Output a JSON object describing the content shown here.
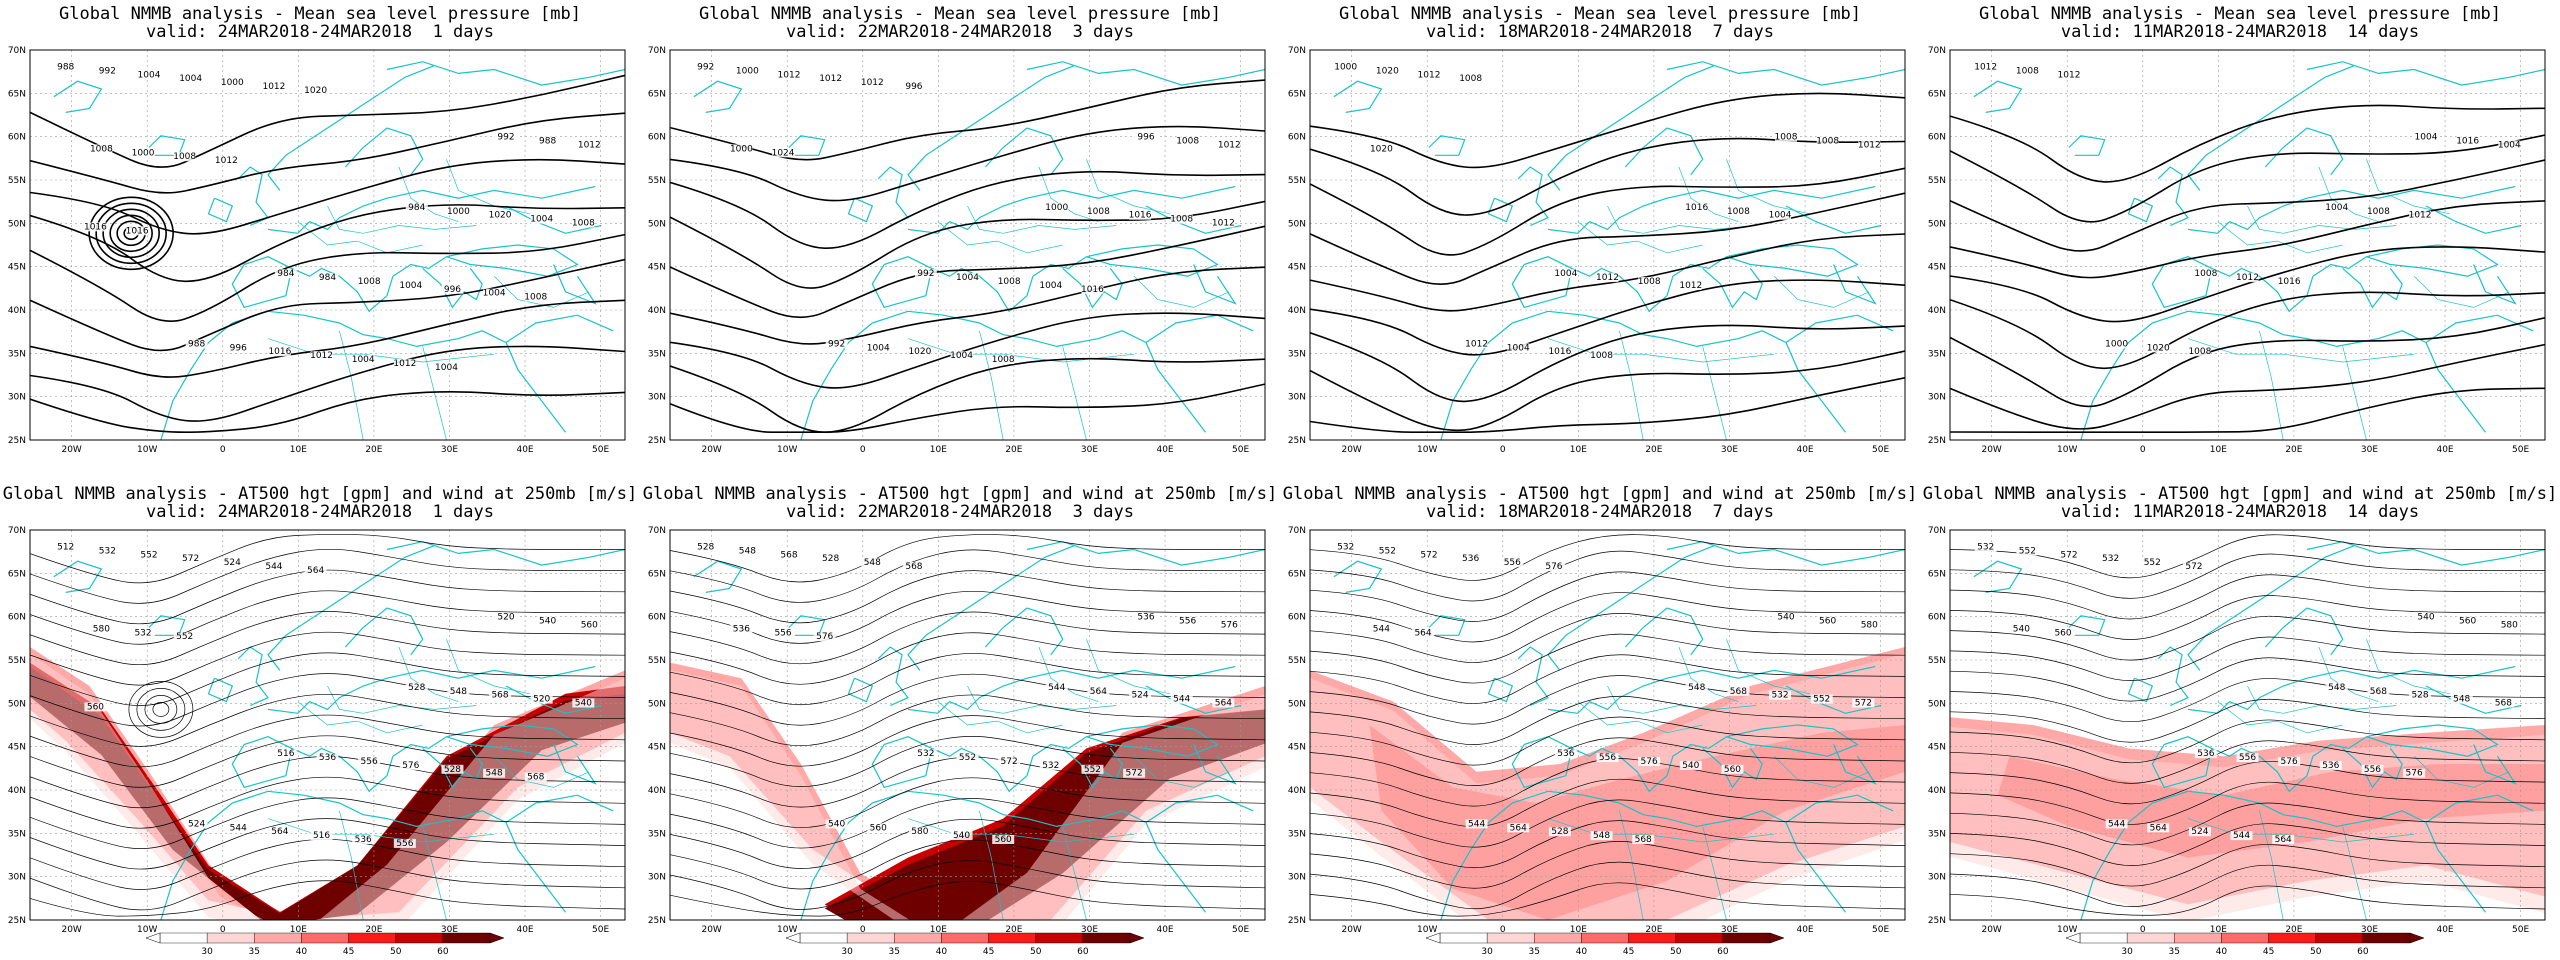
{
  "grid": {
    "lat_ticks": [
      "70N",
      "65N",
      "60N",
      "55N",
      "50N",
      "45N",
      "40N",
      "35N",
      "30N",
      "25N"
    ],
    "lon_ticks": [
      "20W",
      "10W",
      "0",
      "10E",
      "20E",
      "30E",
      "40E",
      "50E"
    ]
  },
  "colors": {
    "coast": "#17c3cc",
    "contour": "#000000",
    "wind_scale": [
      "#ffffff",
      "#ffd6d6",
      "#ffa8a8",
      "#ff6b6b",
      "#ff1a1a",
      "#c80000",
      "#6e0000"
    ]
  },
  "colorbar": {
    "labels": [
      "30",
      "35",
      "40",
      "45",
      "50",
      "60"
    ]
  },
  "panels": [
    {
      "id": "mslp-1d",
      "row": "top",
      "title": "Global NMMB analysis - Mean sea level pressure [mb]",
      "subtitle": "valid: 24MAR2018-24MAR2018  1 days",
      "labels": [
        "988",
        "984",
        "992",
        "988",
        "984",
        "992",
        "984",
        "988",
        "996",
        "1000",
        "1004",
        "1008",
        "1012",
        "1016",
        "1020",
        "1004",
        "1004",
        "1008",
        "1012",
        "1004",
        "1000",
        "996",
        "1000",
        "1004",
        "1008",
        "1012",
        "1004",
        "1008",
        "1012",
        "1016",
        "1020",
        "1008",
        "1012",
        "1004",
        "1016"
      ]
    },
    {
      "id": "mslp-3d",
      "row": "top",
      "title": "Global NMMB analysis - Mean sea level pressure [mb]",
      "subtitle": "valid: 22MAR2018-24MAR2018  3 days",
      "labels": [
        "992",
        "992",
        "996",
        "992",
        "1000",
        "1000",
        "1004",
        "1008",
        "1004",
        "1008",
        "1012",
        "1008",
        "1012",
        "1020",
        "1016",
        "1012",
        "1004",
        "1000",
        "1004",
        "1008",
        "1012",
        "1016",
        "1024",
        "1008",
        "1012",
        "996"
      ]
    },
    {
      "id": "mslp-7d",
      "row": "top",
      "title": "Global NMMB analysis - Mean sea level pressure [mb]",
      "subtitle": "valid: 18MAR2018-24MAR2018  7 days",
      "labels": [
        "1000",
        "1004",
        "1008",
        "1012",
        "1016",
        "1020",
        "1012",
        "1008",
        "1004",
        "1008",
        "1012",
        "1008",
        "1012",
        "1016",
        "1004",
        "1008",
        "1012",
        "1020",
        "1008"
      ]
    },
    {
      "id": "mslp-14d",
      "row": "top",
      "title": "Global NMMB analysis - Mean sea level pressure [mb]",
      "subtitle": "valid: 11MAR2018-24MAR2018  14 days",
      "labels": [
        "1012",
        "1008",
        "1004",
        "1000",
        "1004",
        "1008",
        "1012",
        "1016",
        "1020",
        "1008",
        "1012",
        "1016",
        "1004",
        "1008",
        "1012"
      ]
    },
    {
      "id": "z500-1d",
      "row": "bottom",
      "title": "Global NMMB analysis - AT500 hgt [gpm] and wind at 250mb [m/s]",
      "subtitle": "valid: 24MAR2018-24MAR2018  1 days",
      "labels": [
        "512",
        "516",
        "520",
        "524",
        "528",
        "532",
        "536",
        "540",
        "544",
        "548",
        "552",
        "556",
        "560",
        "564",
        "568",
        "572",
        "576",
        "580",
        "516",
        "520",
        "524",
        "528",
        "532",
        "536",
        "540",
        "544",
        "548",
        "552",
        "556",
        "560",
        "564",
        "568"
      ]
    },
    {
      "id": "z500-3d",
      "row": "bottom",
      "title": "Global NMMB analysis - AT500 hgt [gpm] and wind at 250mb [m/s]",
      "subtitle": "valid: 22MAR2018-24MAR2018  3 days",
      "labels": [
        "528",
        "532",
        "536",
        "540",
        "544",
        "548",
        "552",
        "556",
        "560",
        "564",
        "568",
        "572",
        "576",
        "580",
        "524",
        "528",
        "532",
        "536",
        "540",
        "544",
        "548",
        "552",
        "556",
        "560",
        "564",
        "568",
        "572",
        "576"
      ]
    },
    {
      "id": "z500-7d",
      "row": "bottom",
      "title": "Global NMMB analysis - AT500 hgt [gpm] and wind at 250mb [m/s]",
      "subtitle": "valid: 18MAR2018-24MAR2018  7 days",
      "labels": [
        "532",
        "536",
        "540",
        "544",
        "548",
        "552",
        "556",
        "560",
        "564",
        "568",
        "572",
        "576",
        "580",
        "528",
        "532",
        "536",
        "540",
        "544",
        "548",
        "552",
        "556",
        "560",
        "564",
        "568",
        "572",
        "576"
      ]
    },
    {
      "id": "z500-14d",
      "row": "bottom",
      "title": "Global NMMB analysis - AT500 hgt [gpm] and wind at 250mb [m/s]",
      "subtitle": "valid: 11MAR2018-24MAR2018  14 days",
      "labels": [
        "532",
        "536",
        "540",
        "544",
        "548",
        "552",
        "556",
        "560",
        "564",
        "568",
        "572",
        "576",
        "580",
        "524",
        "528",
        "532",
        "536",
        "540",
        "544",
        "548",
        "552",
        "556",
        "560",
        "564",
        "568",
        "572",
        "576"
      ]
    }
  ]
}
